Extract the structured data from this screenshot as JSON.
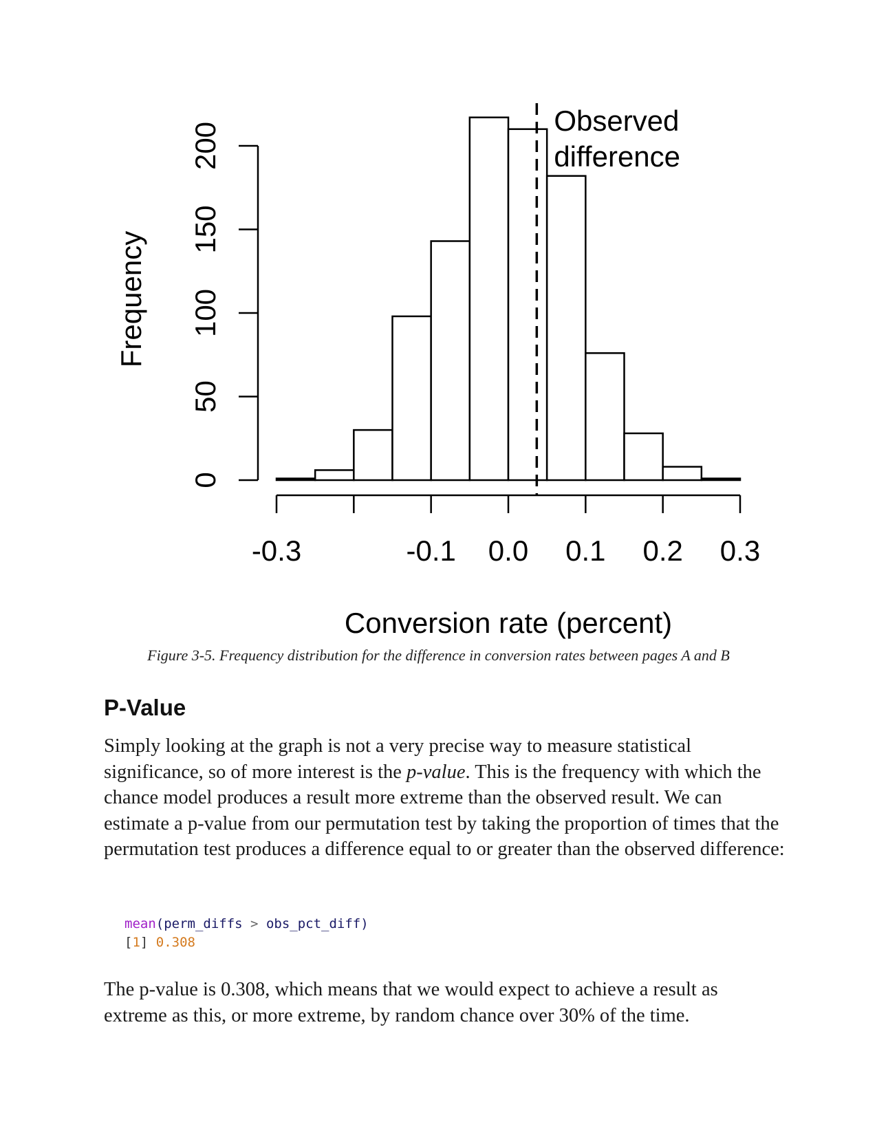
{
  "chart_data": {
    "type": "histogram",
    "title": "",
    "xlabel": "Conversion rate (percent)",
    "ylabel": "Frequency",
    "xlim": [
      -0.3,
      0.3
    ],
    "ylim": [
      0,
      200
    ],
    "x_ticks": [
      -0.3,
      -0.2,
      -0.1,
      0.0,
      0.1,
      0.2,
      0.3
    ],
    "x_tick_labels": [
      "-0.3",
      "",
      "-0.1",
      "0.0",
      "0.1",
      "0.2",
      "0.3"
    ],
    "y_ticks": [
      0,
      50,
      100,
      150,
      200
    ],
    "y_tick_labels": [
      "0",
      "50",
      "100",
      "150",
      "200"
    ],
    "bins": [
      {
        "x0": -0.3,
        "x1": -0.25,
        "count": 1
      },
      {
        "x0": -0.25,
        "x1": -0.2,
        "count": 6
      },
      {
        "x0": -0.2,
        "x1": -0.15,
        "count": 30
      },
      {
        "x0": -0.15,
        "x1": -0.1,
        "count": 98
      },
      {
        "x0": -0.1,
        "x1": -0.05,
        "count": 143
      },
      {
        "x0": -0.05,
        "x1": 0.0,
        "count": 217
      },
      {
        "x0": 0.0,
        "x1": 0.05,
        "count": 210
      },
      {
        "x0": 0.05,
        "x1": 0.1,
        "count": 182
      },
      {
        "x0": 0.1,
        "x1": 0.15,
        "count": 76
      },
      {
        "x0": 0.15,
        "x1": 0.2,
        "count": 28
      },
      {
        "x0": 0.2,
        "x1": 0.25,
        "count": 8
      },
      {
        "x0": 0.25,
        "x1": 0.3,
        "count": 1
      }
    ],
    "observed_difference": 0.0368,
    "annotation": {
      "line1": "Observed",
      "line2": "difference"
    }
  },
  "caption": "Figure 3-5. Frequency distribution for the difference in conversion rates between pages A and B",
  "section": {
    "heading": "P-Value",
    "para1": {
      "before": "Simply looking at the graph is not a very precise way to measure statistical significance, so of more interest is the ",
      "em": "p-value",
      "after": ". This is the frequency with which the chance model produces a result more extreme than the observed result. We can estimate a p-value from our permutation test by taking the proportion of times that the permutation test produces a difference equal to or greater than the observed difference:"
    },
    "code": {
      "fn": "mean",
      "open": "(",
      "arg1": "perm_diffs",
      "op": " > ",
      "arg2": "obs_pct_diff",
      "close": ")",
      "out_bracket_open": "[",
      "out_index": "1",
      "out_bracket_close": "] ",
      "out_value": "0.308"
    },
    "para2": "The p-value is 0.308, which means that we would expect to achieve a result as extreme as this, or more extreme, by random chance over 30% of the time."
  }
}
